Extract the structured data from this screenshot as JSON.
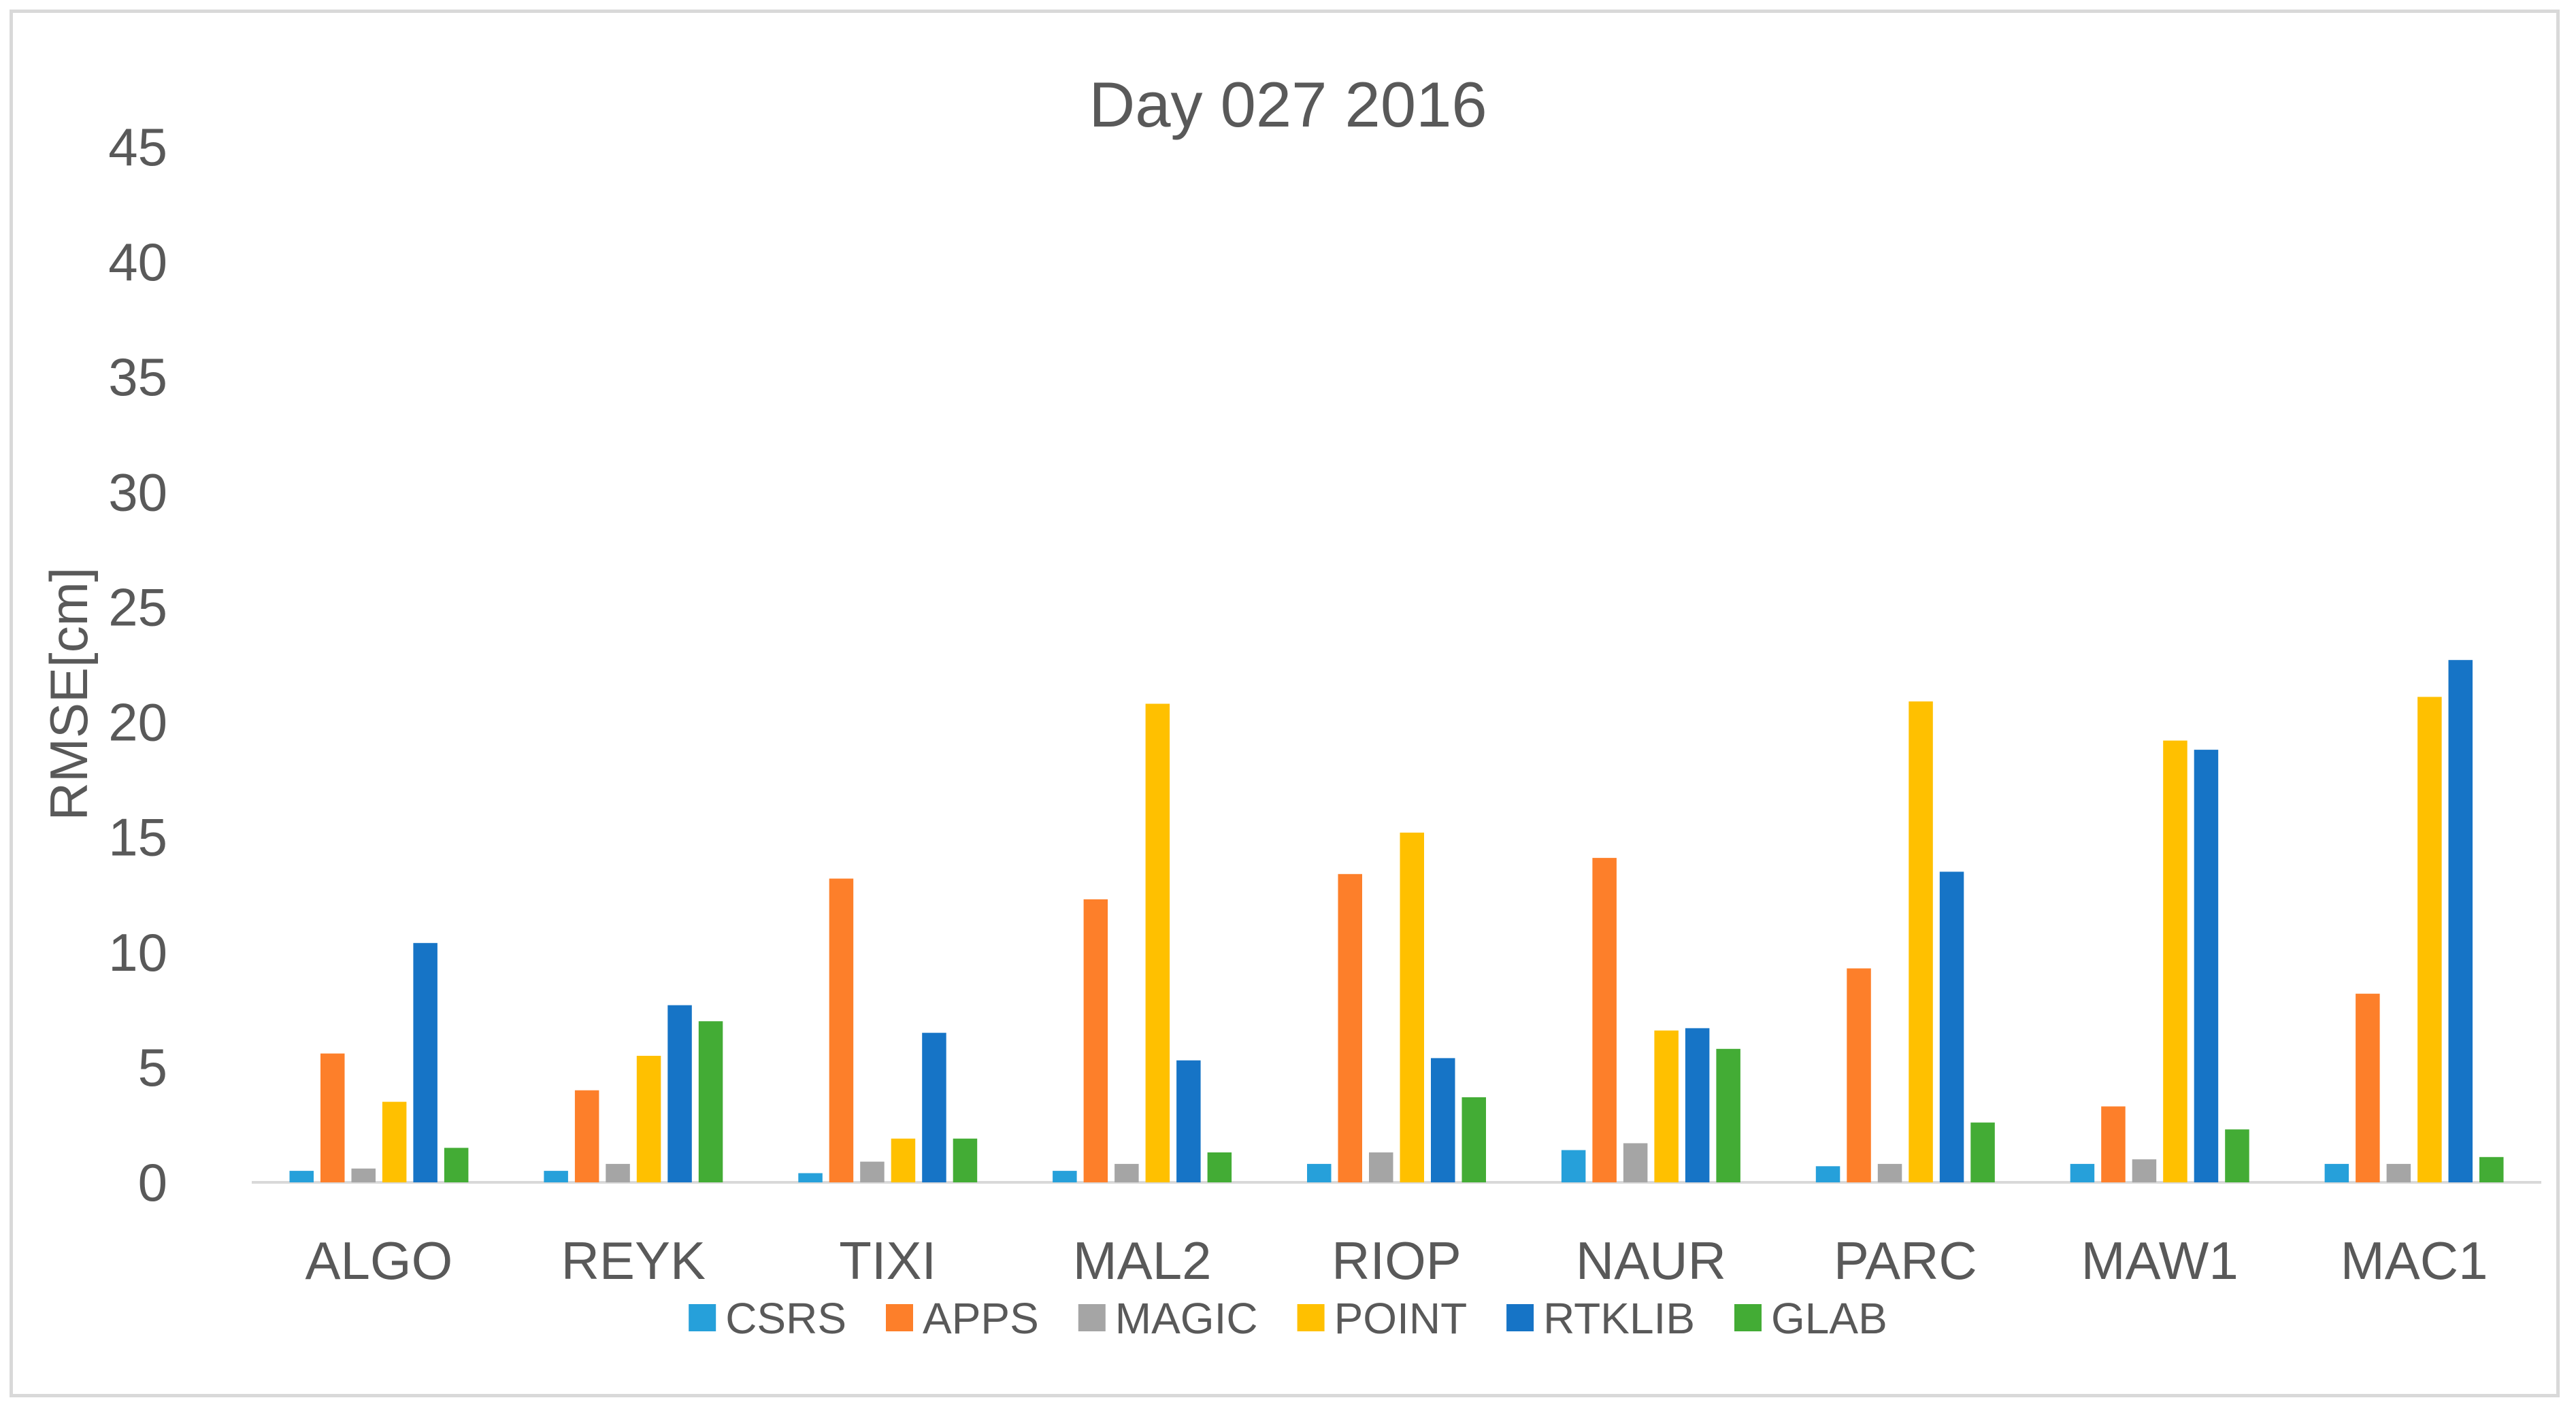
{
  "chart_data": {
    "type": "bar",
    "title": "Day 027 2016",
    "xlabel": "",
    "ylabel": "RMSE[cm]",
    "ylim": [
      0,
      45
    ],
    "yticks": [
      0,
      5,
      10,
      15,
      20,
      25,
      30,
      35,
      40,
      45
    ],
    "grid": false,
    "legend_position": "bottom",
    "categories": [
      "ALGO",
      "REYK",
      "TIXI",
      "MAL2",
      "RIOP",
      "NAUR",
      "PARC",
      "MAW1",
      "MAC1"
    ],
    "series": [
      {
        "name": "CSRS",
        "color": "#26a0da",
        "values": [
          0.5,
          0.5,
          0.4,
          0.5,
          0.8,
          1.4,
          0.7,
          0.8,
          0.8
        ]
      },
      {
        "name": "APPS",
        "color": "#fd7f2a",
        "values": [
          5.6,
          4.0,
          13.2,
          12.3,
          13.4,
          14.1,
          9.3,
          3.3,
          8.2
        ]
      },
      {
        "name": "MAGIC",
        "color": "#a5a5a5",
        "values": [
          0.6,
          0.8,
          0.9,
          0.8,
          1.3,
          1.7,
          0.8,
          1.0,
          0.8
        ]
      },
      {
        "name": "POINT",
        "color": "#ffc000",
        "values": [
          3.5,
          5.5,
          1.9,
          20.8,
          15.2,
          6.6,
          20.9,
          19.2,
          21.1
        ]
      },
      {
        "name": "RTKLIB",
        "color": "#1674c6",
        "values": [
          10.4,
          7.7,
          6.5,
          5.3,
          5.4,
          6.7,
          13.5,
          18.8,
          22.7
        ]
      },
      {
        "name": "GLAB",
        "color": "#43ac35",
        "values": [
          1.5,
          7.0,
          1.9,
          1.3,
          3.7,
          5.8,
          2.6,
          2.3,
          1.1
        ]
      }
    ]
  }
}
